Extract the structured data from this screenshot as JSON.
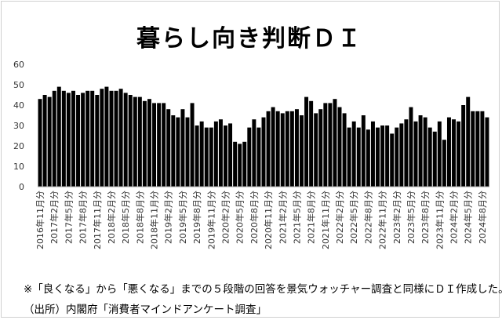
{
  "chart_data": {
    "type": "bar",
    "title": "暮らし向き判断ＤＩ",
    "ylim": [
      0,
      60
    ],
    "yticks": [
      0,
      10,
      20,
      30,
      40,
      50,
      60
    ],
    "grid": false,
    "legend": "none",
    "bar_color": "#000000",
    "tick_labels": [
      "2016年11月分",
      "2017年2月分",
      "2017年5月分",
      "2017年8月分",
      "2017年11月分",
      "2018年2月分",
      "2018年5月分",
      "2018年8月分",
      "2018年11月分",
      "2019年2月分",
      "2019年5月分",
      "2019年8月分",
      "2019年11月分",
      "2020年2月分",
      "2020年5月分",
      "2020年8月分",
      "2020年11月分",
      "2021年2月分",
      "2021年5月分",
      "2021年8月分",
      "2021年11月分",
      "2022年2月分",
      "2022年5月分",
      "2022年8月分",
      "2022年11月分",
      "2023年2月分",
      "2023年5月分",
      "2023年8月分",
      "2023年11月分",
      "2024年2月分",
      "2024年5月分",
      "2024年8月分"
    ],
    "values": [
      43,
      45,
      44,
      47,
      49,
      47,
      46,
      47,
      45,
      46,
      47,
      47,
      45,
      48,
      49,
      47,
      47,
      48,
      46,
      45,
      44,
      44,
      42,
      43,
      41,
      41,
      41,
      38,
      35,
      34,
      38,
      34,
      41,
      30,
      32,
      29,
      29,
      32,
      33,
      30,
      31,
      22,
      21,
      22,
      29,
      33,
      29,
      34,
      37,
      39,
      37,
      36,
      37,
      37,
      38,
      35,
      44,
      42,
      36,
      38,
      41,
      41,
      43,
      39,
      36,
      29,
      32,
      29,
      35,
      28,
      32,
      29,
      30,
      30,
      26,
      29,
      31,
      33,
      39,
      32,
      35,
      34,
      29,
      27,
      32,
      23,
      34,
      33,
      32,
      40,
      44,
      37,
      37,
      37,
      34
    ],
    "footnote": "※「良くなる」から「悪くなる」までの５段階の回答を景気ウォッチャー調査と同様にＤＩ作成した。",
    "source": "（出所）内閣府「消費者マインドアンケート調査」"
  }
}
